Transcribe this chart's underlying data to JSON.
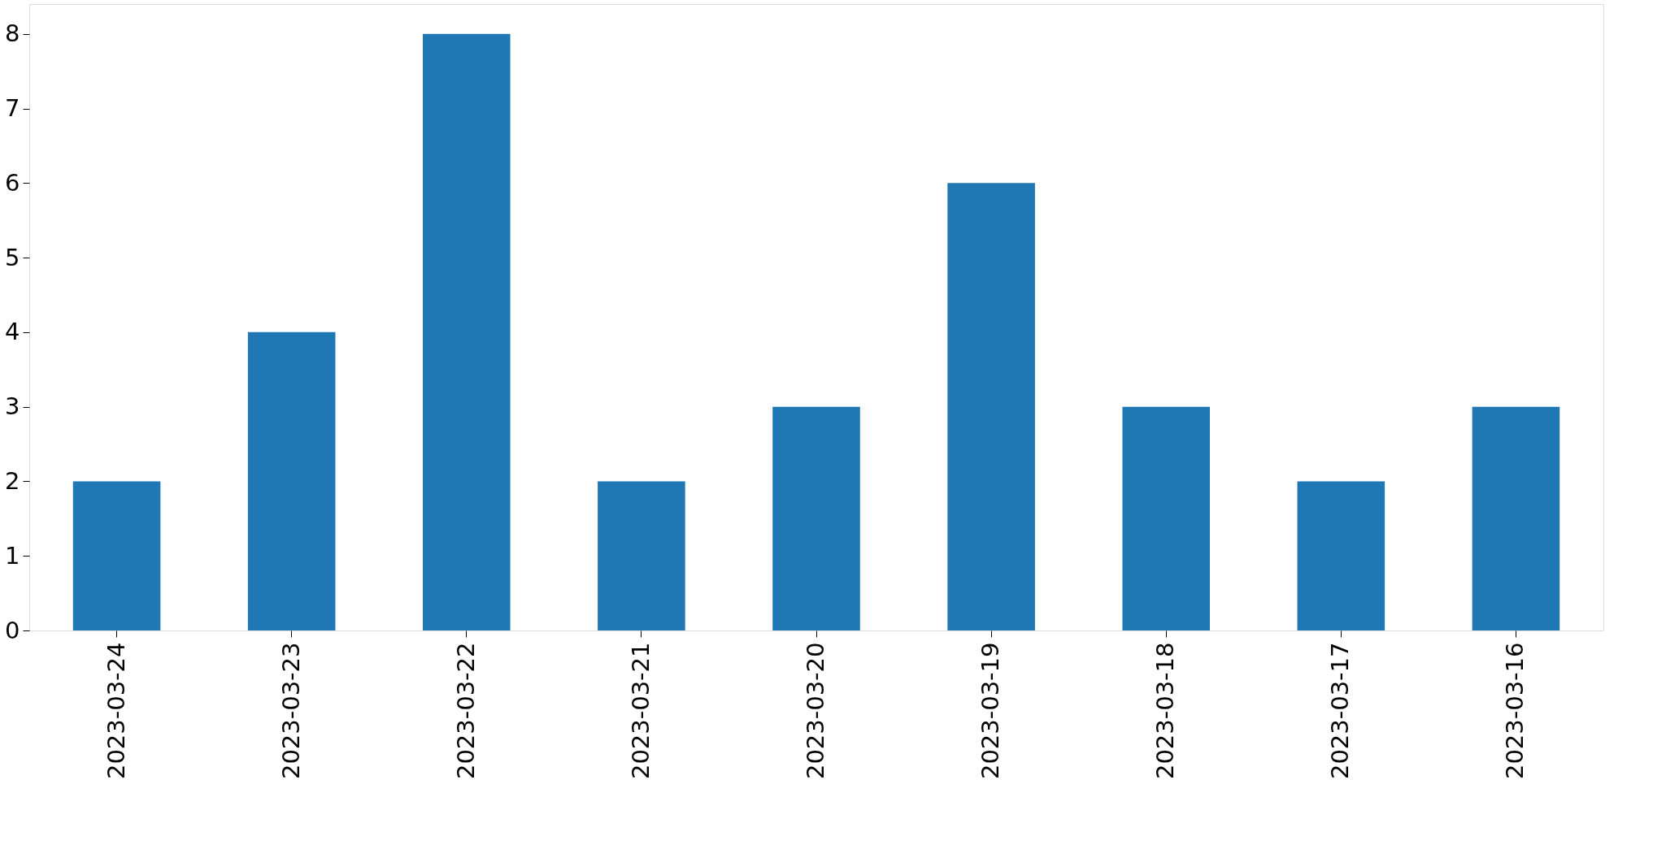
{
  "chart_data": {
    "type": "bar",
    "categories": [
      "2023-03-24",
      "2023-03-23",
      "2023-03-22",
      "2023-03-21",
      "2023-03-20",
      "2023-03-19",
      "2023-03-18",
      "2023-03-17",
      "2023-03-16"
    ],
    "values": [
      2,
      4,
      8,
      2,
      3,
      6,
      3,
      2,
      3
    ],
    "color": "#1f77b4",
    "ylim": [
      0,
      8.4
    ],
    "yticks": [
      0,
      1,
      2,
      3,
      4,
      5,
      6,
      7,
      8
    ],
    "grid": false
  }
}
